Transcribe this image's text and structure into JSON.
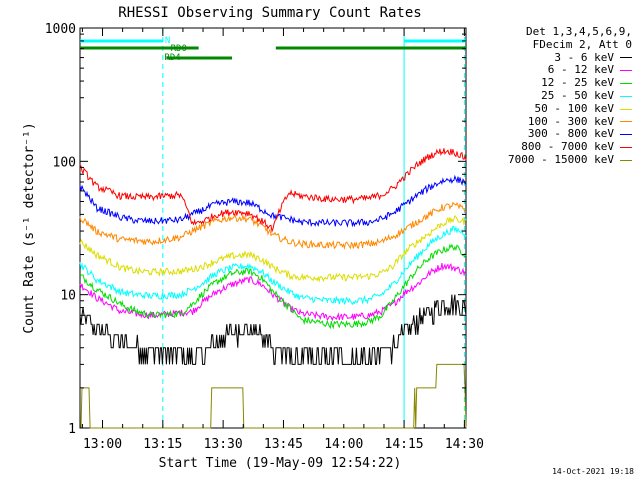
{
  "chart_data": {
    "type": "line",
    "title": "RHESSI Observing Summary Count Rates",
    "xlabel": "Start Time (19-May-09 12:54:22)",
    "ylabel": "Count Rate (s⁻¹ detector⁻¹)",
    "y_scale": "log",
    "ylim": [
      1,
      1000
    ],
    "x_range_minutes": [
      0,
      96
    ],
    "x_ticks": [
      {
        "t": 5.6,
        "label": "13:00"
      },
      {
        "t": 20.6,
        "label": "13:15"
      },
      {
        "t": 35.6,
        "label": "13:30"
      },
      {
        "t": 50.6,
        "label": "13:45"
      },
      {
        "t": 65.6,
        "label": "14:00"
      },
      {
        "t": 80.6,
        "label": "14:15"
      },
      {
        "t": 95.6,
        "label": "14:30"
      }
    ],
    "y_ticks": [
      {
        "v": 1,
        "label": "1"
      },
      {
        "v": 10,
        "label": "10"
      },
      {
        "v": 100,
        "label": "100"
      },
      {
        "v": 1000,
        "label": "1000"
      }
    ],
    "series": [
      {
        "name": "3 - 6 keV",
        "color": "#000000",
        "x": [
          0,
          4,
          10,
          14,
          18,
          25,
          28,
          31,
          34,
          38,
          42,
          45,
          48,
          52,
          55,
          62,
          68,
          72,
          75,
          78,
          81,
          84,
          87,
          90,
          93,
          96
        ],
        "y": [
          7,
          5.5,
          4.5,
          4,
          3.6,
          3.5,
          3.5,
          3.8,
          4.5,
          5.2,
          5.6,
          5,
          4,
          3.4,
          3.3,
          3.3,
          3.3,
          3.4,
          3.6,
          4.1,
          5.2,
          6.3,
          7.5,
          8.4,
          8.6,
          8
        ]
      },
      {
        "name": "6 - 12 keV",
        "color": "#ff00ff",
        "x": [
          0,
          4,
          10,
          14,
          18,
          25,
          28,
          31,
          34,
          38,
          42,
          45,
          48,
          52,
          55,
          62,
          68,
          72,
          75,
          78,
          81,
          84,
          87,
          90,
          93,
          96
        ],
        "y": [
          12,
          9.5,
          7.5,
          7.2,
          7,
          7.3,
          7.5,
          9,
          10.5,
          12,
          13,
          12,
          10,
          8,
          7.2,
          6.8,
          6.8,
          7,
          7.5,
          8.5,
          10.5,
          12,
          14.5,
          16.5,
          16,
          14.5
        ]
      },
      {
        "name": "12 - 25 keV",
        "color": "#00dd00",
        "x": [
          0,
          4,
          10,
          14,
          18,
          25,
          28,
          31,
          34,
          38,
          42,
          45,
          48,
          52,
          55,
          62,
          68,
          72,
          75,
          78,
          81,
          84,
          87,
          90,
          93,
          96
        ],
        "y": [
          14,
          11,
          8.5,
          7.5,
          7,
          7.2,
          8.5,
          10.5,
          12.5,
          14.5,
          15,
          13.5,
          10.5,
          8,
          6.5,
          6,
          6,
          6.3,
          7,
          9,
          12,
          15.5,
          19,
          21.5,
          23,
          20
        ]
      },
      {
        "name": "25 - 50 keV",
        "color": "#00ffff",
        "x": [
          0,
          4,
          10,
          14,
          18,
          25,
          28,
          31,
          34,
          38,
          42,
          45,
          48,
          52,
          55,
          62,
          68,
          72,
          75,
          78,
          81,
          84,
          87,
          90,
          93,
          96
        ],
        "y": [
          17,
          13,
          10.5,
          10,
          9.8,
          10,
          11,
          12.5,
          14.5,
          16,
          16.5,
          15,
          12.5,
          10.5,
          9.5,
          9,
          9,
          9.2,
          10,
          12,
          15.5,
          19.5,
          24,
          28,
          31,
          29
        ]
      },
      {
        "name": "50 - 100 keV",
        "color": "#dddd00",
        "x": [
          0,
          4,
          10,
          14,
          18,
          25,
          28,
          31,
          34,
          38,
          42,
          45,
          48,
          52,
          55,
          62,
          68,
          72,
          75,
          78,
          81,
          84,
          87,
          90,
          93,
          96
        ],
        "y": [
          25,
          20,
          16,
          15,
          14.8,
          15,
          15.5,
          16.5,
          18,
          19.5,
          20,
          18.5,
          16,
          14,
          13.5,
          13.5,
          13.5,
          13.8,
          14.5,
          16.5,
          21,
          25,
          29,
          34,
          37,
          35
        ]
      },
      {
        "name": "100 - 300 keV",
        "color": "#ff8800",
        "x": [
          0,
          4,
          10,
          14,
          18,
          25,
          28,
          31,
          34,
          38,
          42,
          45,
          48,
          52,
          55,
          62,
          68,
          72,
          75,
          78,
          81,
          84,
          87,
          90,
          93,
          96
        ],
        "y": [
          38,
          30,
          26,
          25.5,
          25,
          27,
          30,
          33,
          36,
          38,
          37,
          33,
          28,
          25,
          24,
          23.5,
          23.5,
          24,
          25,
          27.5,
          31,
          35.5,
          40,
          45,
          47,
          43
        ]
      },
      {
        "name": "300 - 800 keV",
        "color": "#0000ff",
        "x": [
          0,
          4,
          10,
          14,
          18,
          25,
          28,
          31,
          34,
          38,
          42,
          45,
          48,
          52,
          55,
          62,
          68,
          72,
          75,
          78,
          81,
          84,
          87,
          90,
          93,
          96
        ],
        "y": [
          65,
          45,
          38,
          36,
          35.5,
          36.5,
          40,
          44,
          48,
          50,
          49,
          44,
          39,
          37,
          35,
          34.5,
          34.5,
          35,
          37,
          41,
          48,
          56,
          64,
          71,
          74,
          70
        ]
      },
      {
        "name": "800 - 7000 keV",
        "color": "#ff0000",
        "x": [
          0,
          4,
          10,
          14,
          18,
          25,
          28,
          31,
          34,
          38,
          42,
          45,
          48,
          52,
          55,
          62,
          68,
          72,
          75,
          78,
          81,
          84,
          87,
          90,
          93,
          96
        ],
        "y": [
          90,
          65,
          55,
          54,
          54,
          56,
          34,
          36,
          40,
          42,
          41,
          36,
          31,
          58,
          55,
          52,
          52,
          53,
          56,
          63,
          78,
          95,
          110,
          120,
          118,
          105
        ]
      },
      {
        "name": "7000 - 15000 keV",
        "color": "#888800",
        "x": [
          0,
          0.5,
          2,
          2.5,
          32,
          33,
          40,
          41,
          83,
          84,
          88,
          89,
          95.5,
          96
        ],
        "y": [
          1,
          2,
          2,
          1,
          1,
          2,
          2,
          1,
          1,
          2,
          2,
          3,
          3,
          1
        ]
      }
    ],
    "status_bars": [
      {
        "label": "N",
        "color": "#00ffff",
        "segments": [
          [
            0,
            20.6
          ],
          [
            80.6,
            96
          ]
        ],
        "level": "top"
      },
      {
        "label": "RD0",
        "color": "#008800",
        "segments": [
          [
            0,
            29.5
          ],
          [
            48.7,
            96
          ]
        ],
        "level": "upper"
      },
      {
        "label": "RD4",
        "color": "#008800",
        "segments": [
          [
            21.5,
            37.8
          ]
        ],
        "level": "lower"
      }
    ],
    "vertical_markers": [
      {
        "t": 20.6,
        "style": "dashed"
      },
      {
        "t": 80.6,
        "style": "solid"
      },
      {
        "t": 95.6,
        "style": "dashed"
      }
    ],
    "legend_position": "right"
  },
  "legend": {
    "header_line1": "Det 1,3,4,5,6,9,",
    "header_line2": "FDecim 2, Att 0"
  },
  "footer_stamp": "14-Oct-2021 19:18"
}
